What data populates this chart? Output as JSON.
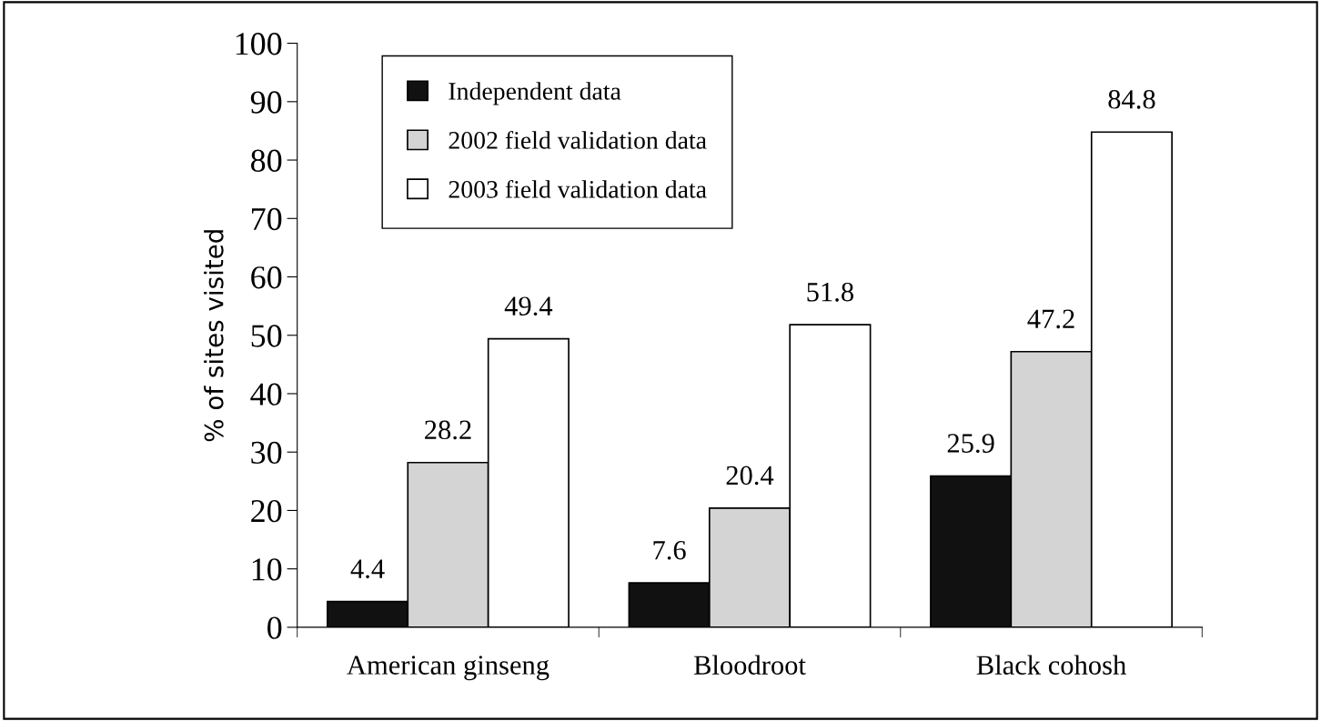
{
  "chart_data": {
    "type": "bar",
    "ylabel": "% of sites visited",
    "categories": [
      "American ginseng",
      "Bloodroot",
      "Black cohosh"
    ],
    "series": [
      {
        "name": "Independent data",
        "color": "#111111",
        "values": [
          4.4,
          7.6,
          25.9
        ]
      },
      {
        "name": "2002 field validation data",
        "color": "#d4d4d4",
        "values": [
          28.2,
          20.4,
          47.2
        ]
      },
      {
        "name": "2003 field validation data",
        "color": "#ffffff",
        "values": [
          49.4,
          51.8,
          84.8
        ]
      }
    ],
    "ylim": [
      0,
      100
    ],
    "yticks": [
      0,
      10,
      20,
      30,
      40,
      50,
      60,
      70,
      80,
      90,
      100
    ],
    "grid": false,
    "legend": "top left",
    "data_labels": true
  }
}
